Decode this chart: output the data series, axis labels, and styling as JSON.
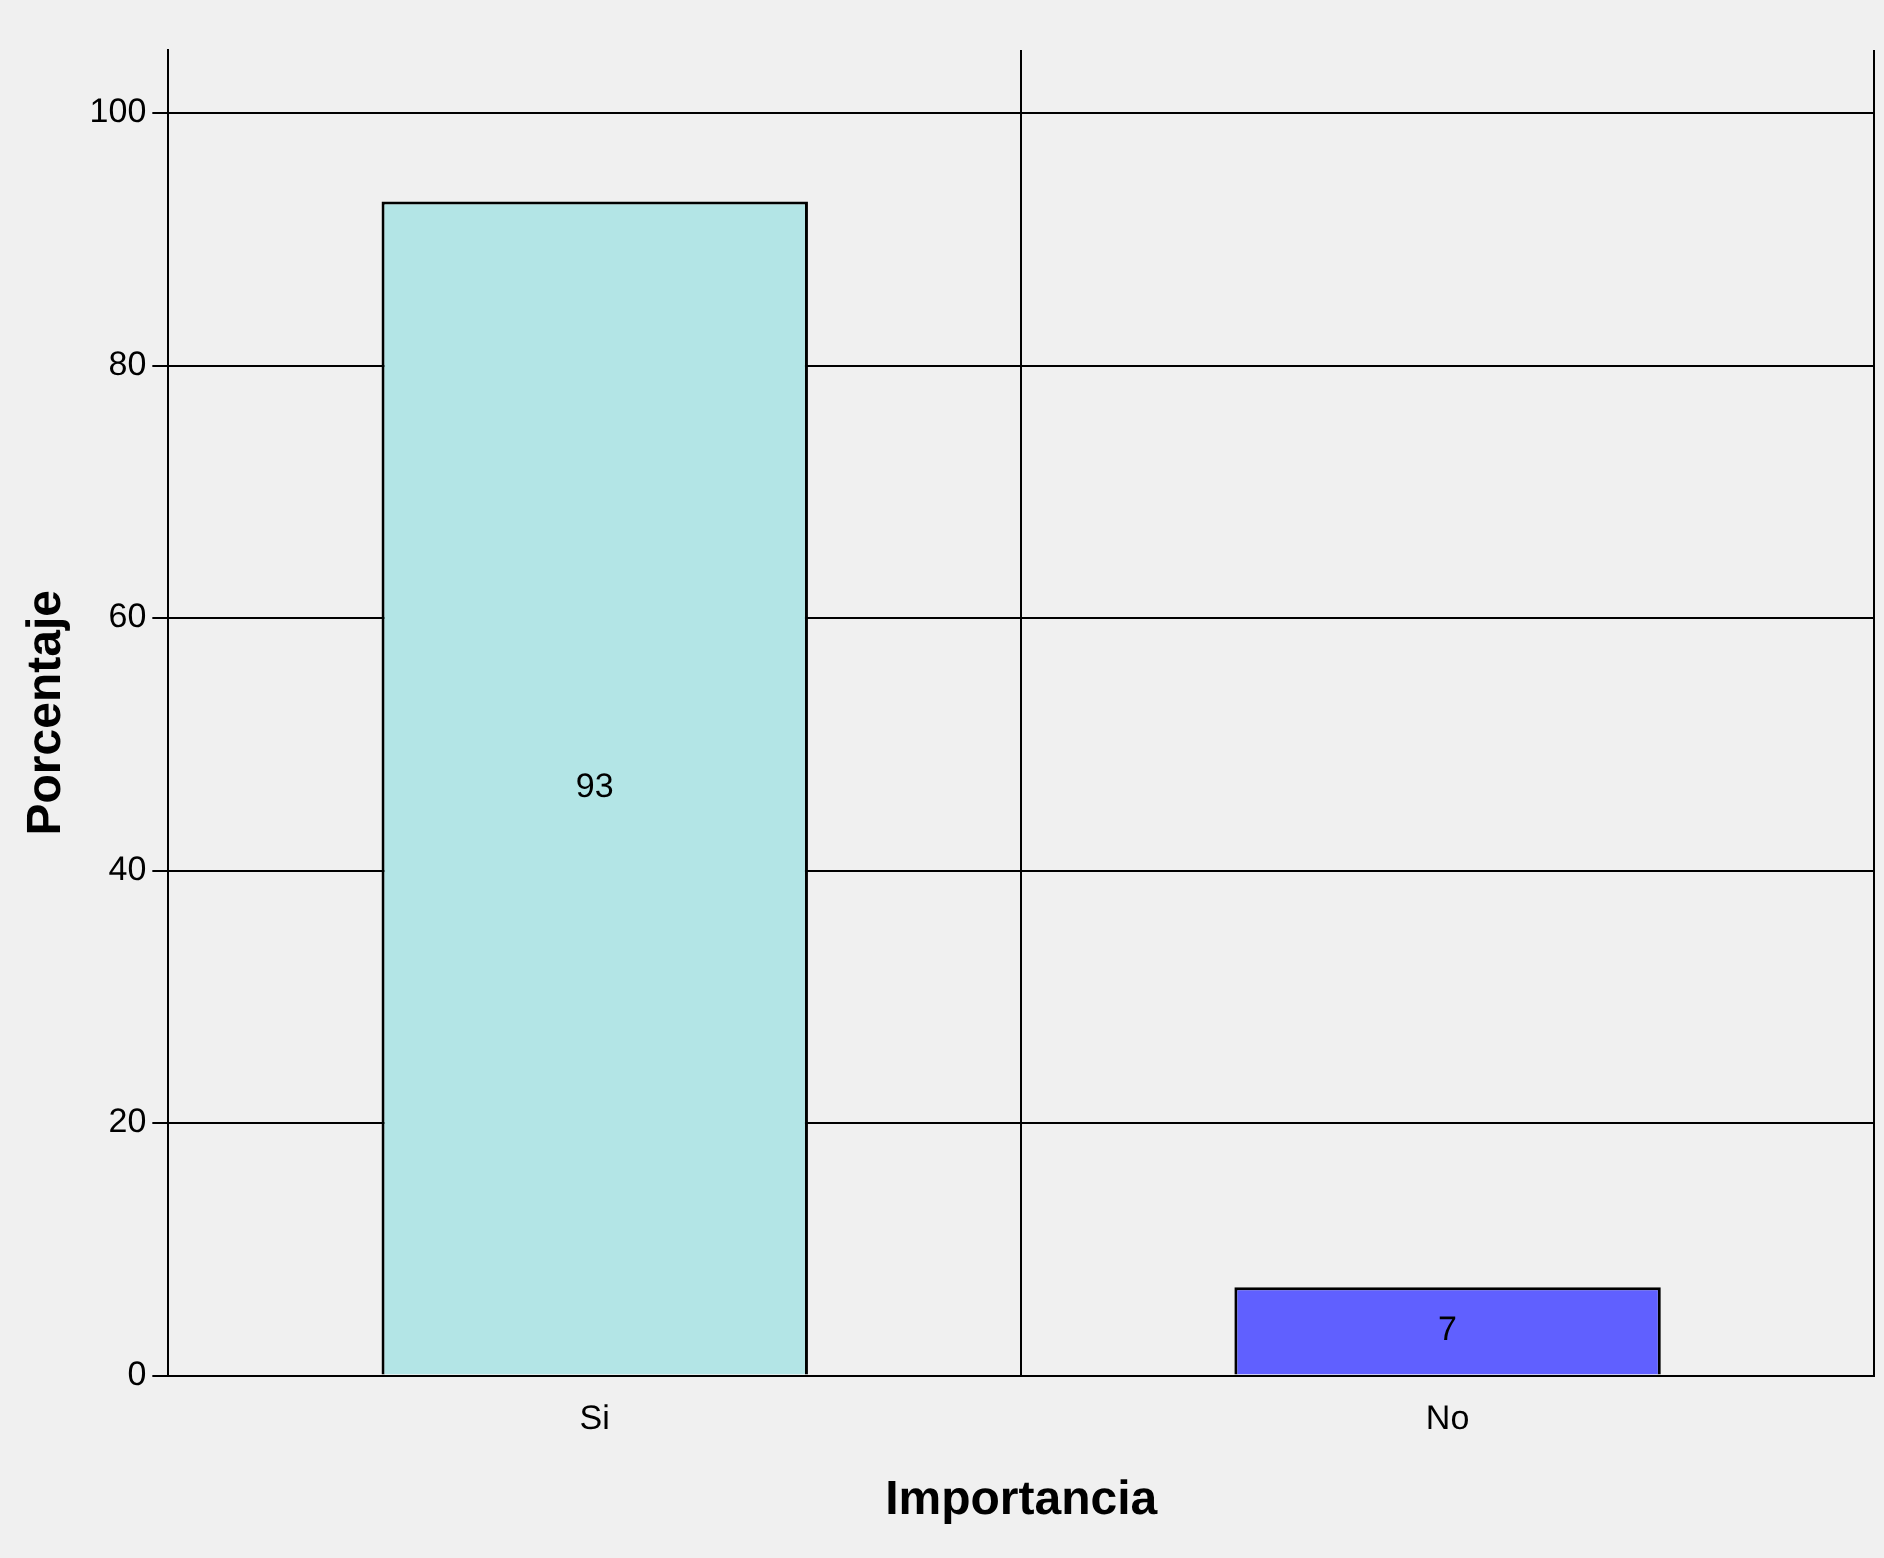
{
  "chart_data": {
    "type": "bar",
    "xlabel": "Importancia",
    "ylabel": "Porcentaje",
    "categories": [
      "Si",
      "No"
    ],
    "values": [
      93,
      7
    ],
    "colors": [
      "#b3e5e6",
      "#6060ff"
    ],
    "ylim": [
      0,
      105
    ],
    "yticks": [
      0,
      20,
      40,
      60,
      80,
      100
    ],
    "grid": true,
    "data_labels": true,
    "legend": false
  }
}
